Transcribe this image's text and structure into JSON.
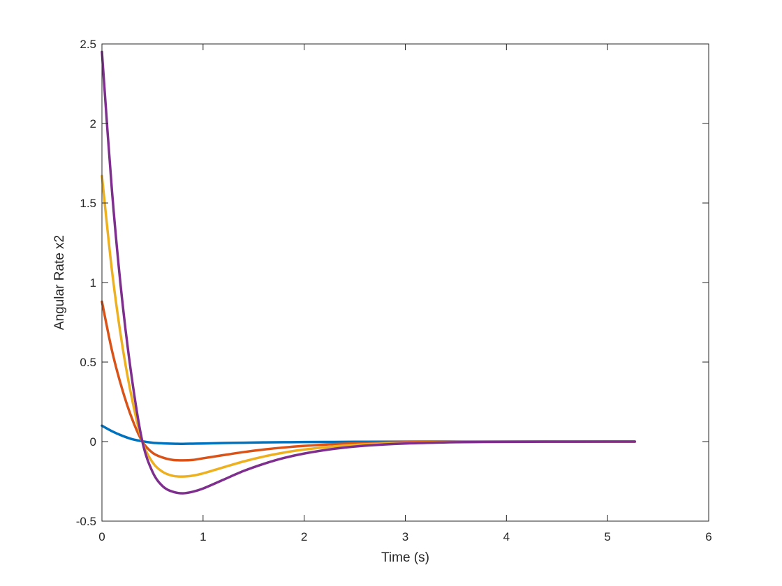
{
  "chart_data": {
    "type": "line",
    "title": "",
    "xlabel": "Time (s)",
    "ylabel": "Angular Rate x2",
    "xlim": [
      0,
      6
    ],
    "ylim": [
      -0.5,
      2.5
    ],
    "xticks": [
      "0",
      "1",
      "2",
      "3",
      "4",
      "5",
      "6"
    ],
    "yticks": [
      "-0.5",
      "0",
      "0.5",
      "1",
      "1.5",
      "2",
      "2.5"
    ],
    "grid": false,
    "legend": "none",
    "x": [
      0,
      0.1,
      0.2,
      0.3,
      0.4,
      0.5,
      0.6,
      0.7,
      0.8,
      0.9,
      1.0,
      1.2,
      1.4,
      1.6,
      1.8,
      2.0,
      2.3,
      2.6,
      3.0,
      3.5,
      4.0,
      4.5,
      5.0,
      5.27
    ],
    "series": [
      {
        "color": "#0072BD",
        "values": [
          0.1,
          0.065,
          0.037,
          0.015,
          0.002,
          -0.007,
          -0.011,
          -0.013,
          -0.014,
          -0.013,
          -0.012,
          -0.009,
          -0.007,
          -0.005,
          -0.004,
          -0.003,
          -0.002,
          -0.001,
          -0.0005,
          0,
          0,
          0,
          0,
          0
        ]
      },
      {
        "color": "#D95319",
        "values": [
          0.88,
          0.57,
          0.33,
          0.14,
          0.0,
          -0.07,
          -0.1,
          -0.115,
          -0.118,
          -0.115,
          -0.105,
          -0.085,
          -0.066,
          -0.05,
          -0.037,
          -0.027,
          -0.016,
          -0.009,
          -0.004,
          -0.0015,
          -0.0005,
          0,
          0,
          0
        ]
      },
      {
        "color": "#EDB120",
        "values": [
          1.67,
          1.07,
          0.61,
          0.26,
          0.0,
          -0.13,
          -0.19,
          -0.215,
          -0.22,
          -0.214,
          -0.2,
          -0.162,
          -0.125,
          -0.094,
          -0.069,
          -0.05,
          -0.03,
          -0.017,
          -0.008,
          -0.003,
          -0.001,
          0,
          0,
          0
        ]
      },
      {
        "color": "#7E2F8E",
        "values": [
          2.45,
          1.57,
          0.89,
          0.38,
          0.0,
          -0.19,
          -0.28,
          -0.315,
          -0.325,
          -0.315,
          -0.295,
          -0.24,
          -0.185,
          -0.14,
          -0.103,
          -0.075,
          -0.045,
          -0.026,
          -0.012,
          -0.004,
          -0.0015,
          -0.0005,
          0,
          0
        ]
      }
    ]
  }
}
